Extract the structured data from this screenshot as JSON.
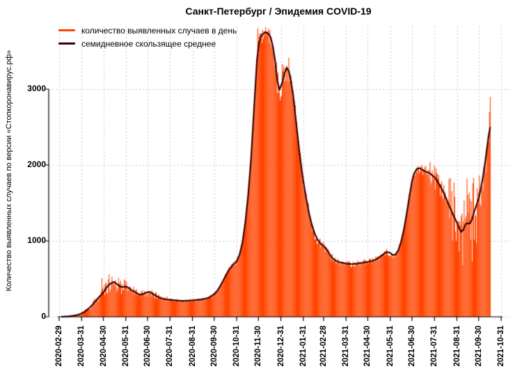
{
  "chart_data": {
    "type": "bar",
    "title": "Санкт-Петербург / Эпидемия COVID-19",
    "xlabel": "",
    "ylabel": "Количество выявленных случаев по версии «Стопкоронавирус.рф»",
    "ylim": [
      0,
      3800
    ],
    "yticks": [
      0,
      1000,
      2000,
      3000
    ],
    "xtick_labels": [
      "2020-02-29",
      "2020-03-31",
      "2020-04-30",
      "2020-05-31",
      "2020-06-30",
      "2020-07-31",
      "2020-08-31",
      "2020-09-30",
      "2020-10-31",
      "2020-11-30",
      "2020-12-31",
      "2021-01-31",
      "2021-02-28",
      "2021-03-31",
      "2021-04-30",
      "2021-05-31",
      "2021-06-30",
      "2021-07-31",
      "2021-08-31",
      "2021-09-30",
      "2021-10-31"
    ],
    "grid": "dashed",
    "legend_position": "top-left",
    "data_range": [
      "2020-03-03",
      "2021-10-16"
    ],
    "colors": {
      "grid": "#c8c8c8",
      "axis": "#000000",
      "background": "#ffffff"
    },
    "series": [
      {
        "name": "количество выявленных случаев в день",
        "type": "bar",
        "color": "#FF4500",
        "note": "daily reported cases drawn as dense vertical bars; values scatter around the 7-day average per daily_volatility, with daily_overrides for notable spikes"
      },
      {
        "name": "семидневное скользящее среднее",
        "type": "line",
        "color": "#380000",
        "points": [
          [
            "2020-03-03",
            1
          ],
          [
            "2020-03-08",
            3
          ],
          [
            "2020-03-13",
            6
          ],
          [
            "2020-03-18",
            12
          ],
          [
            "2020-03-23",
            20
          ],
          [
            "2020-03-28",
            32
          ],
          [
            "2020-03-31",
            45
          ],
          [
            "2020-04-04",
            65
          ],
          [
            "2020-04-08",
            95
          ],
          [
            "2020-04-12",
            130
          ],
          [
            "2020-04-16",
            170
          ],
          [
            "2020-04-20",
            215
          ],
          [
            "2020-04-24",
            260
          ],
          [
            "2020-04-28",
            300
          ],
          [
            "2020-04-30",
            320
          ],
          [
            "2020-05-04",
            380
          ],
          [
            "2020-05-08",
            425
          ],
          [
            "2020-05-12",
            450
          ],
          [
            "2020-05-15",
            460
          ],
          [
            "2020-05-18",
            435
          ],
          [
            "2020-05-22",
            405
          ],
          [
            "2020-05-26",
            390
          ],
          [
            "2020-05-31",
            400
          ],
          [
            "2020-06-04",
            380
          ],
          [
            "2020-06-08",
            350
          ],
          [
            "2020-06-12",
            330
          ],
          [
            "2020-06-16",
            308
          ],
          [
            "2020-06-20",
            290
          ],
          [
            "2020-06-24",
            302
          ],
          [
            "2020-06-28",
            318
          ],
          [
            "2020-07-02",
            330
          ],
          [
            "2020-07-06",
            312
          ],
          [
            "2020-07-10",
            285
          ],
          [
            "2020-07-15",
            258
          ],
          [
            "2020-07-20",
            240
          ],
          [
            "2020-07-25",
            230
          ],
          [
            "2020-07-31",
            224
          ],
          [
            "2020-08-08",
            216
          ],
          [
            "2020-08-16",
            210
          ],
          [
            "2020-08-24",
            212
          ],
          [
            "2020-08-31",
            216
          ],
          [
            "2020-09-08",
            224
          ],
          [
            "2020-09-15",
            232
          ],
          [
            "2020-09-21",
            248
          ],
          [
            "2020-09-26",
            272
          ],
          [
            "2020-09-30",
            300
          ],
          [
            "2020-10-04",
            340
          ],
          [
            "2020-10-08",
            400
          ],
          [
            "2020-10-12",
            470
          ],
          [
            "2020-10-16",
            545
          ],
          [
            "2020-10-20",
            615
          ],
          [
            "2020-10-25",
            675
          ],
          [
            "2020-10-31",
            730
          ],
          [
            "2020-11-04",
            820
          ],
          [
            "2020-11-08",
            980
          ],
          [
            "2020-11-12",
            1250
          ],
          [
            "2020-11-16",
            1620
          ],
          [
            "2020-11-20",
            2100
          ],
          [
            "2020-11-24",
            2750
          ],
          [
            "2020-11-28",
            3380
          ],
          [
            "2020-12-01",
            3620
          ],
          [
            "2020-12-05",
            3720
          ],
          [
            "2020-12-10",
            3750
          ],
          [
            "2020-12-14",
            3730
          ],
          [
            "2020-12-17",
            3680
          ],
          [
            "2020-12-20",
            3560
          ],
          [
            "2020-12-23",
            3380
          ],
          [
            "2020-12-26",
            3120
          ],
          [
            "2020-12-29",
            2990
          ],
          [
            "2021-01-02",
            3090
          ],
          [
            "2021-01-05",
            3210
          ],
          [
            "2021-01-08",
            3280
          ],
          [
            "2021-01-11",
            3240
          ],
          [
            "2021-01-14",
            3100
          ],
          [
            "2021-01-17",
            2920
          ],
          [
            "2021-01-20",
            2660
          ],
          [
            "2021-01-23",
            2400
          ],
          [
            "2021-01-26",
            2140
          ],
          [
            "2021-01-29",
            1920
          ],
          [
            "2021-01-31",
            1790
          ],
          [
            "2021-02-04",
            1560
          ],
          [
            "2021-02-08",
            1360
          ],
          [
            "2021-02-12",
            1200
          ],
          [
            "2021-02-16",
            1090
          ],
          [
            "2021-02-20",
            1010
          ],
          [
            "2021-02-24",
            962
          ],
          [
            "2021-02-28",
            930
          ],
          [
            "2021-03-04",
            890
          ],
          [
            "2021-03-08",
            830
          ],
          [
            "2021-03-12",
            775
          ],
          [
            "2021-03-16",
            742
          ],
          [
            "2021-03-21",
            722
          ],
          [
            "2021-03-26",
            712
          ],
          [
            "2021-03-31",
            700
          ],
          [
            "2021-04-08",
            694
          ],
          [
            "2021-04-16",
            702
          ],
          [
            "2021-04-24",
            714
          ],
          [
            "2021-04-30",
            722
          ],
          [
            "2021-05-06",
            736
          ],
          [
            "2021-05-12",
            758
          ],
          [
            "2021-05-17",
            790
          ],
          [
            "2021-05-22",
            828
          ],
          [
            "2021-05-26",
            856
          ],
          [
            "2021-05-31",
            842
          ],
          [
            "2021-06-03",
            816
          ],
          [
            "2021-06-07",
            818
          ],
          [
            "2021-06-11",
            872
          ],
          [
            "2021-06-15",
            990
          ],
          [
            "2021-06-19",
            1160
          ],
          [
            "2021-06-23",
            1380
          ],
          [
            "2021-06-27",
            1620
          ],
          [
            "2021-06-30",
            1790
          ],
          [
            "2021-07-03",
            1890
          ],
          [
            "2021-07-07",
            1952
          ],
          [
            "2021-07-11",
            1958
          ],
          [
            "2021-07-15",
            1930
          ],
          [
            "2021-07-19",
            1912
          ],
          [
            "2021-07-23",
            1900
          ],
          [
            "2021-07-27",
            1872
          ],
          [
            "2021-07-31",
            1840
          ],
          [
            "2021-08-04",
            1786
          ],
          [
            "2021-08-08",
            1722
          ],
          [
            "2021-08-12",
            1648
          ],
          [
            "2021-08-16",
            1560
          ],
          [
            "2021-08-20",
            1472
          ],
          [
            "2021-08-24",
            1384
          ],
          [
            "2021-08-28",
            1300
          ],
          [
            "2021-08-31",
            1242
          ],
          [
            "2021-09-03",
            1170
          ],
          [
            "2021-09-06",
            1118
          ],
          [
            "2021-09-09",
            1150
          ],
          [
            "2021-09-12",
            1224
          ],
          [
            "2021-09-15",
            1232
          ],
          [
            "2021-09-18",
            1228
          ],
          [
            "2021-09-21",
            1292
          ],
          [
            "2021-09-24",
            1390
          ],
          [
            "2021-09-27",
            1472
          ],
          [
            "2021-09-30",
            1556
          ],
          [
            "2021-10-03",
            1690
          ],
          [
            "2021-10-06",
            1846
          ],
          [
            "2021-10-09",
            2040
          ],
          [
            "2021-10-12",
            2260
          ],
          [
            "2021-10-14",
            2400
          ],
          [
            "2021-10-16",
            2500
          ]
        ]
      }
    ],
    "daily_volatility": [
      [
        "2020-03-03",
        0.45
      ],
      [
        "2020-04-08",
        0.25
      ],
      [
        "2020-06-01",
        0.18
      ],
      [
        "2020-08-01",
        0.1
      ],
      [
        "2020-10-01",
        0.06
      ],
      [
        "2020-11-05",
        0.03
      ],
      [
        "2020-12-20",
        0.055
      ],
      [
        "2021-01-15",
        0.05
      ],
      [
        "2021-02-01",
        0.07
      ],
      [
        "2021-03-15",
        0.06
      ],
      [
        "2021-06-05",
        0.04
      ],
      [
        "2021-07-25",
        0.09
      ],
      [
        "2021-08-20",
        0.35
      ],
      [
        "2021-09-29",
        0.18
      ],
      [
        "2021-10-08",
        0.1
      ]
    ],
    "daily_overrides": {
      "2020-04-28": 510,
      "2020-05-08": 560,
      "2020-05-12": 530,
      "2020-11-29": 3800,
      "2020-12-06": 3780,
      "2021-01-02": 3330,
      "2021-01-08": 3310,
      "2021-09-08": 680,
      "2021-09-14": 1820,
      "2021-09-21": 730,
      "2021-10-15": 2700,
      "2021-10-16": 2900
    }
  }
}
